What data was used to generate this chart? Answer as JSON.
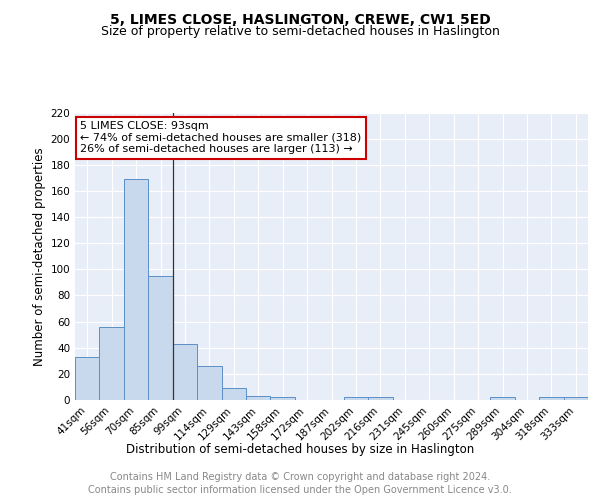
{
  "title": "5, LIMES CLOSE, HASLINGTON, CREWE, CW1 5ED",
  "subtitle": "Size of property relative to semi-detached houses in Haslington",
  "xlabel": "Distribution of semi-detached houses by size in Haslington",
  "ylabel": "Number of semi-detached properties",
  "categories": [
    "41sqm",
    "56sqm",
    "70sqm",
    "85sqm",
    "99sqm",
    "114sqm",
    "129sqm",
    "143sqm",
    "158sqm",
    "172sqm",
    "187sqm",
    "202sqm",
    "216sqm",
    "231sqm",
    "245sqm",
    "260sqm",
    "275sqm",
    "289sqm",
    "304sqm",
    "318sqm",
    "333sqm"
  ],
  "values": [
    33,
    56,
    169,
    95,
    43,
    26,
    9,
    3,
    2,
    0,
    0,
    2,
    2,
    0,
    0,
    0,
    0,
    2,
    0,
    2,
    2
  ],
  "bar_color": "#c9d9ed",
  "bar_edge_color": "#5b8fc7",
  "bg_color": "#e8eef8",
  "grid_color": "#ffffff",
  "annotation_line1": "5 LIMES CLOSE: 93sqm",
  "annotation_line2": "← 74% of semi-detached houses are smaller (318)",
  "annotation_line3": "26% of semi-detached houses are larger (113) →",
  "annotation_box_color": "#ffffff",
  "annotation_box_edge": "#cc0000",
  "ylim": [
    0,
    220
  ],
  "yticks": [
    0,
    20,
    40,
    60,
    80,
    100,
    120,
    140,
    160,
    180,
    200,
    220
  ],
  "footer_line1": "Contains HM Land Registry data © Crown copyright and database right 2024.",
  "footer_line2": "Contains public sector information licensed under the Open Government Licence v3.0.",
  "title_fontsize": 10,
  "subtitle_fontsize": 9,
  "xlabel_fontsize": 8.5,
  "ylabel_fontsize": 8.5,
  "footer_fontsize": 7,
  "tick_fontsize": 7.5,
  "annot_fontsize": 8
}
